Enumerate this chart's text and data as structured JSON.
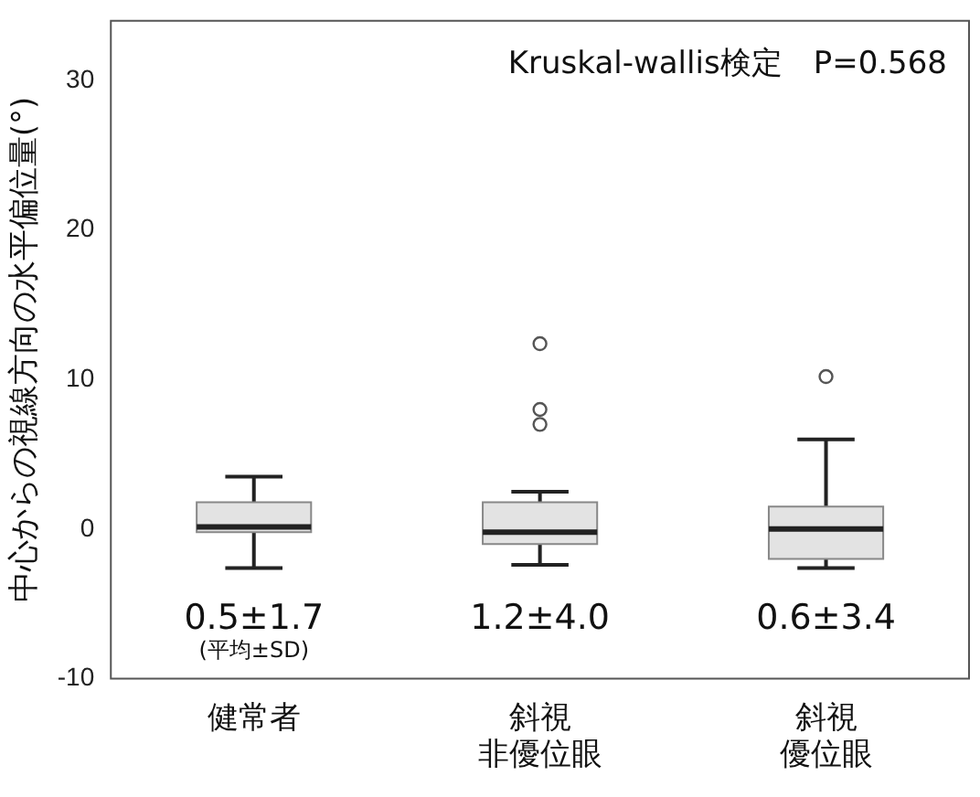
{
  "chart_data": {
    "type": "box",
    "ylabel": "中心からの視線方向の水平偏位量(°)",
    "categories": [
      "健常者",
      "斜視非優位眼",
      "斜視優位眼"
    ],
    "color": "#e3e3e3",
    "boxes": [
      {
        "low": -2.6,
        "q1": -0.2,
        "median": 0.15,
        "q3": 1.8,
        "high": 3.5
      },
      {
        "low": -2.4,
        "q1": -1.0,
        "median": -0.2,
        "q3": 1.8,
        "high": 2.5,
        "outliers": [
          7.0,
          8.0,
          12.4
        ]
      },
      {
        "low": -2.6,
        "q1": -2.0,
        "median": 0,
        "q3": 1.5,
        "high": 6.0,
        "outliers": [
          10.2
        ]
      }
    ],
    "ylim": [
      -10,
      34
    ],
    "yticks": [
      -10,
      0,
      10,
      20,
      30
    ],
    "grid": false,
    "legend": false,
    "annotations": [
      "Kruskal-wallis検定　P=0.568",
      "0.5±1.7",
      "(平均±SD)",
      "1.2±4.0",
      "0.6±3.4"
    ]
  }
}
